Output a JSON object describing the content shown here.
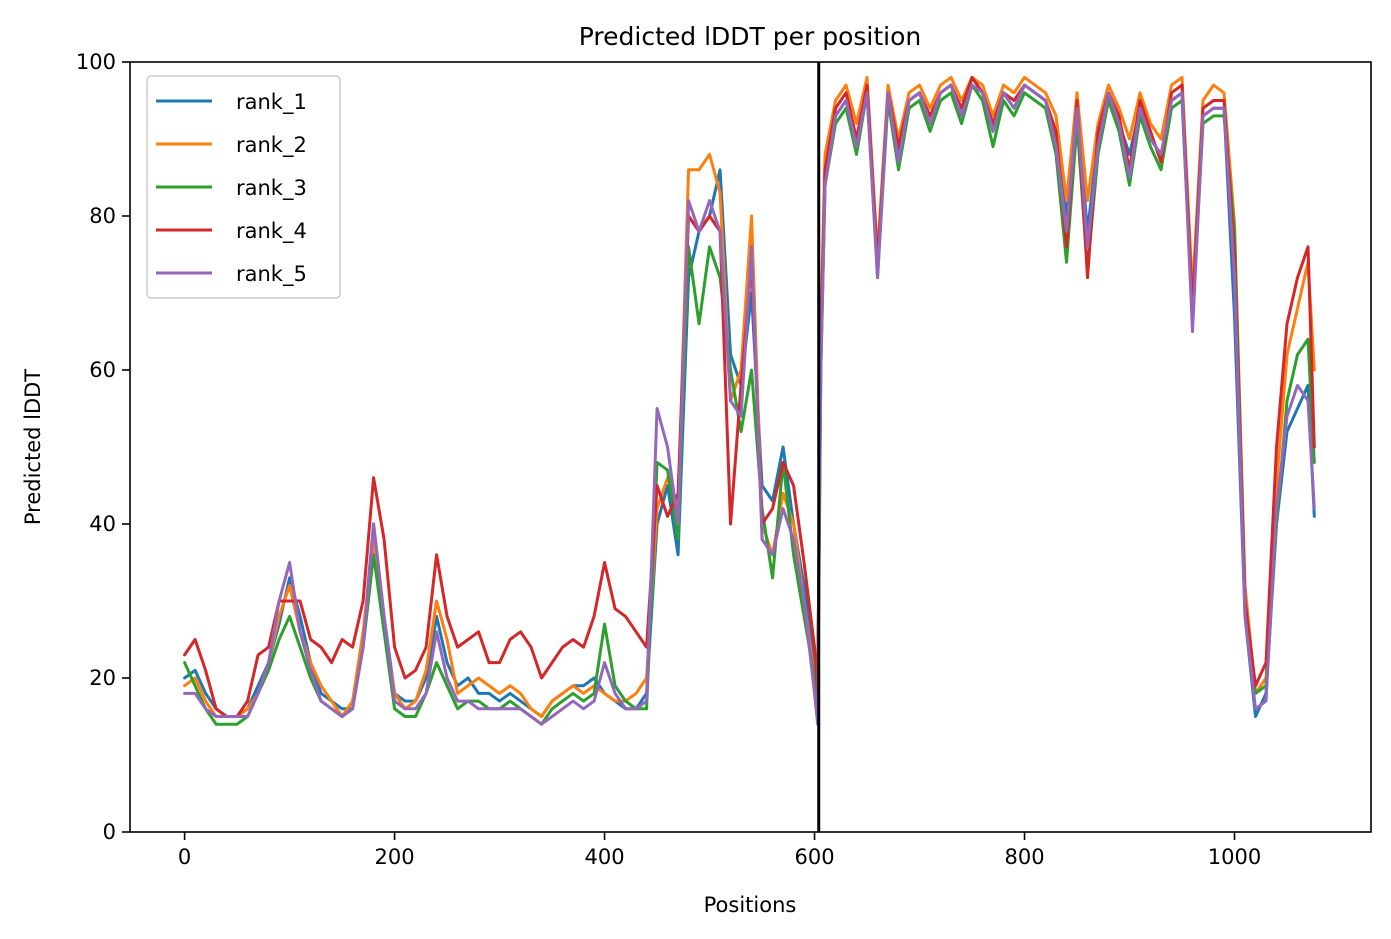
{
  "chart_data": {
    "type": "line",
    "title": "Predicted lDDT per position",
    "xlabel": "Positions",
    "ylabel": "Predicted lDDT",
    "xlim": [
      -52,
      1130
    ],
    "ylim": [
      0,
      100
    ],
    "xticks": [
      0,
      200,
      400,
      600,
      800,
      1000
    ],
    "yticks": [
      0,
      20,
      40,
      60,
      80,
      100
    ],
    "grid": false,
    "legend_position": "top-left",
    "vertical_line": {
      "x": 604,
      "color": "#000000"
    },
    "x": [
      0,
      10,
      20,
      30,
      40,
      50,
      60,
      70,
      80,
      90,
      100,
      110,
      120,
      130,
      140,
      150,
      160,
      170,
      180,
      190,
      200,
      210,
      220,
      230,
      240,
      250,
      260,
      270,
      280,
      290,
      300,
      310,
      320,
      330,
      340,
      350,
      360,
      370,
      380,
      390,
      400,
      410,
      420,
      430,
      440,
      450,
      460,
      470,
      480,
      490,
      500,
      510,
      520,
      530,
      540,
      550,
      560,
      570,
      580,
      590,
      600,
      603,
      606,
      610,
      620,
      630,
      640,
      650,
      660,
      670,
      680,
      690,
      700,
      710,
      720,
      730,
      740,
      750,
      760,
      770,
      780,
      790,
      800,
      810,
      820,
      830,
      840,
      850,
      860,
      870,
      880,
      890,
      900,
      910,
      920,
      930,
      940,
      950,
      960,
      970,
      980,
      990,
      1000,
      1010,
      1020,
      1030,
      1040,
      1050,
      1060,
      1070,
      1076
    ],
    "series": [
      {
        "name": "rank_1",
        "color": "#1f77b4",
        "values": [
          20,
          21,
          18,
          16,
          15,
          15,
          16,
          19,
          22,
          27,
          33,
          28,
          22,
          18,
          17,
          16,
          16,
          25,
          40,
          28,
          18,
          17,
          17,
          20,
          28,
          22,
          19,
          20,
          18,
          18,
          17,
          18,
          17,
          16,
          15,
          17,
          18,
          19,
          19,
          20,
          18,
          17,
          16,
          16,
          18,
          40,
          45,
          36,
          72,
          78,
          80,
          86,
          62,
          58,
          70,
          45,
          43,
          50,
          40,
          32,
          22,
          18,
          62,
          85,
          93,
          95,
          90,
          97,
          73,
          96,
          88,
          95,
          96,
          92,
          96,
          97,
          93,
          98,
          96,
          91,
          96,
          94,
          97,
          96,
          95,
          90,
          80,
          94,
          78,
          90,
          96,
          92,
          88,
          94,
          90,
          88,
          95,
          96,
          68,
          93,
          94,
          94,
          67,
          28,
          15,
          18,
          40,
          52,
          55,
          58,
          41
        ]
      },
      {
        "name": "rank_2",
        "color": "#ff7f0e",
        "values": [
          19,
          20,
          17,
          15,
          15,
          15,
          16,
          18,
          22,
          28,
          32,
          26,
          22,
          19,
          17,
          15,
          17,
          26,
          38,
          27,
          18,
          16,
          17,
          21,
          30,
          25,
          18,
          19,
          20,
          19,
          18,
          19,
          18,
          16,
          15,
          17,
          18,
          19,
          18,
          19,
          18,
          17,
          17,
          18,
          20,
          42,
          46,
          42,
          86,
          86,
          88,
          83,
          56,
          60,
          80,
          40,
          36,
          44,
          40,
          30,
          20,
          17,
          66,
          88,
          95,
          97,
          92,
          98,
          75,
          97,
          90,
          96,
          97,
          94,
          97,
          98,
          95,
          98,
          97,
          93,
          97,
          96,
          98,
          97,
          96,
          93,
          82,
          96,
          82,
          92,
          97,
          94,
          90,
          96,
          92,
          90,
          97,
          98,
          70,
          95,
          97,
          96,
          79,
          32,
          18,
          20,
          45,
          62,
          68,
          74,
          60
        ]
      },
      {
        "name": "rank_3",
        "color": "#2ca02c",
        "values": [
          22,
          19,
          16,
          14,
          14,
          14,
          15,
          18,
          21,
          25,
          28,
          24,
          20,
          17,
          16,
          15,
          16,
          24,
          36,
          26,
          16,
          15,
          15,
          18,
          22,
          19,
          16,
          17,
          17,
          16,
          16,
          17,
          16,
          15,
          14,
          16,
          17,
          18,
          17,
          18,
          27,
          19,
          17,
          16,
          16,
          48,
          47,
          38,
          76,
          66,
          76,
          72,
          60,
          52,
          60,
          42,
          33,
          48,
          36,
          28,
          20,
          17,
          60,
          84,
          92,
          94,
          88,
          96,
          72,
          95,
          86,
          94,
          95,
          91,
          95,
          96,
          92,
          97,
          95,
          89,
          95,
          93,
          96,
          95,
          94,
          88,
          74,
          92,
          73,
          88,
          95,
          91,
          84,
          93,
          89,
          86,
          94,
          95,
          67,
          92,
          93,
          93,
          78,
          30,
          18,
          19,
          40,
          56,
          62,
          64,
          48
        ]
      },
      {
        "name": "rank_4",
        "color": "#d62728",
        "values": [
          23,
          25,
          21,
          16,
          15,
          15,
          17,
          23,
          24,
          30,
          30,
          30,
          25,
          24,
          22,
          25,
          24,
          30,
          46,
          38,
          24,
          20,
          21,
          24,
          36,
          28,
          24,
          25,
          26,
          22,
          22,
          25,
          26,
          24,
          20,
          22,
          24,
          25,
          24,
          28,
          35,
          29,
          28,
          26,
          24,
          45,
          41,
          44,
          80,
          78,
          80,
          78,
          40,
          58,
          74,
          40,
          42,
          48,
          45,
          35,
          24,
          18,
          64,
          86,
          94,
          96,
          90,
          97,
          74,
          96,
          89,
          95,
          96,
          93,
          96,
          97,
          94,
          98,
          96,
          92,
          96,
          95,
          97,
          96,
          95,
          91,
          76,
          95,
          72,
          91,
          96,
          93,
          86,
          95,
          91,
          87,
          96,
          97,
          68,
          94,
          95,
          95,
          75,
          30,
          19,
          22,
          50,
          66,
          72,
          76,
          50
        ]
      },
      {
        "name": "rank_5",
        "color": "#9467bd",
        "values": [
          18,
          18,
          16,
          15,
          15,
          15,
          15,
          18,
          22,
          30,
          35,
          26,
          21,
          17,
          16,
          15,
          16,
          24,
          40,
          28,
          17,
          16,
          16,
          18,
          26,
          20,
          17,
          17,
          16,
          16,
          16,
          16,
          16,
          15,
          14,
          15,
          16,
          17,
          16,
          17,
          22,
          18,
          16,
          16,
          17,
          55,
          50,
          40,
          82,
          78,
          82,
          78,
          56,
          54,
          76,
          38,
          36,
          42,
          38,
          30,
          18,
          14,
          60,
          84,
          93,
          95,
          89,
          96,
          72,
          96,
          87,
          95,
          96,
          92,
          96,
          97,
          93,
          97,
          96,
          91,
          96,
          94,
          97,
          96,
          95,
          89,
          78,
          94,
          76,
          89,
          96,
          92,
          85,
          94,
          90,
          88,
          95,
          96,
          65,
          93,
          94,
          94,
          72,
          28,
          16,
          17,
          42,
          54,
          58,
          56,
          42
        ]
      }
    ]
  }
}
